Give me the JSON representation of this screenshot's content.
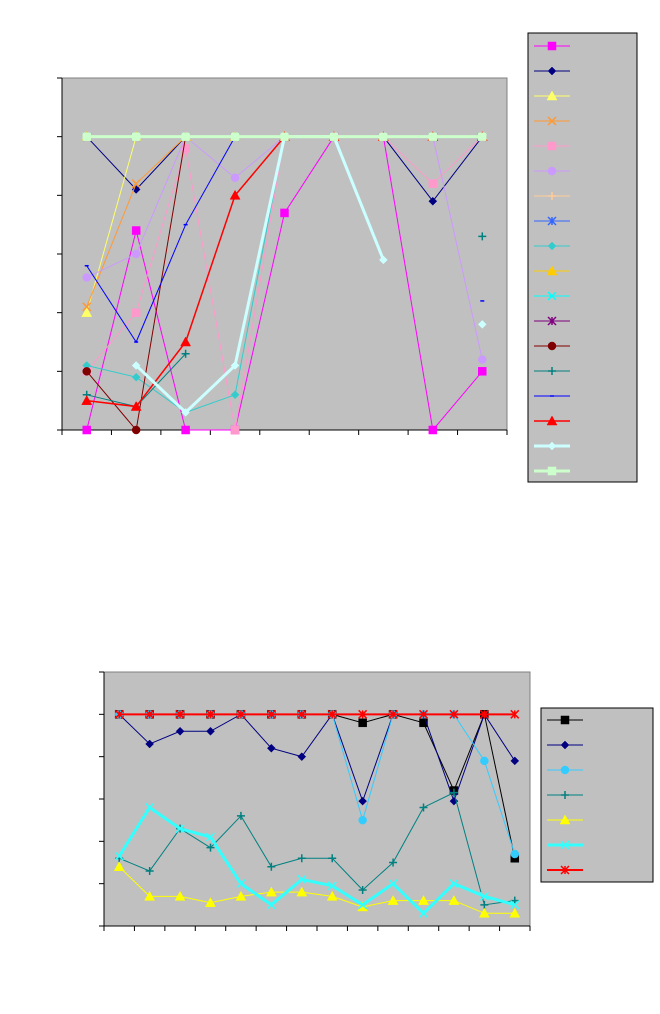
{
  "chart_data": [
    {
      "type": "line",
      "categories": [
        null,
        null,
        null,
        null,
        null,
        null,
        null,
        null,
        null
      ],
      "ylim": [
        0,
        6
      ],
      "yticks": [
        0,
        1,
        2,
        3,
        4,
        5,
        6
      ],
      "legend": "right",
      "series": [
        {
          "color": "#ff00ff",
          "marker": "square",
          "width": 1,
          "values": [
            0,
            3.4,
            0,
            0,
            3.7,
            5,
            5,
            0,
            1
          ]
        },
        {
          "color": "#000080",
          "marker": "diamond",
          "width": 1,
          "values": [
            5,
            4.1,
            5,
            5,
            5,
            5,
            5,
            3.9,
            5
          ]
        },
        {
          "color": "#ffff66",
          "marker": "triangle",
          "width": 1,
          "values": [
            2,
            5,
            5,
            5,
            5,
            5,
            5,
            5,
            5
          ]
        },
        {
          "color": "#ff9933",
          "marker": "x",
          "width": 1,
          "values": [
            2.1,
            4.2,
            5,
            5,
            5,
            5,
            5,
            5,
            5
          ]
        },
        {
          "color": "#ff99cc",
          "marker": "square",
          "width": 1,
          "values": [
            1,
            2,
            4.8,
            0,
            5,
            5,
            5,
            4.2,
            5
          ]
        },
        {
          "color": "#cc99ff",
          "marker": "circle",
          "width": 1,
          "values": [
            2.6,
            3,
            5,
            4.3,
            5,
            5,
            5,
            5,
            1.2
          ]
        },
        {
          "color": "#ffcc99",
          "marker": "plus",
          "width": 1,
          "values": [
            5,
            5,
            5,
            5,
            5,
            5,
            5,
            5,
            5
          ]
        },
        {
          "color": "#3366ff",
          "marker": "star",
          "width": 1,
          "values": [
            5,
            5,
            5,
            5,
            5,
            5,
            5,
            5,
            5
          ]
        },
        {
          "color": "#33cccc",
          "marker": "diamond",
          "width": 1,
          "values": [
            1.1,
            0.9,
            0.3,
            0.6,
            5,
            5,
            5,
            5,
            5
          ]
        },
        {
          "color": "#ffcc00",
          "marker": "triangle",
          "width": 1,
          "values": [
            5,
            5,
            5,
            5,
            5,
            5,
            5,
            5,
            5
          ]
        },
        {
          "color": "#00ffff",
          "marker": "x",
          "width": 1,
          "values": [
            5,
            5,
            5,
            5,
            5,
            5,
            5,
            5,
            5
          ]
        },
        {
          "color": "#800080",
          "marker": "star",
          "width": 1,
          "values": [
            5,
            5,
            5,
            5,
            5,
            5,
            5,
            5,
            5
          ]
        },
        {
          "color": "#800000",
          "marker": "circle",
          "width": 1,
          "values": [
            1,
            0,
            5,
            5,
            5,
            5,
            5,
            5,
            5
          ]
        },
        {
          "color": "#008080",
          "marker": "plus",
          "width": 1,
          "values": [
            0.6,
            0.4,
            1.3,
            null,
            null,
            null,
            null,
            null,
            3.3
          ]
        },
        {
          "color": "#0000ff",
          "marker": "dash",
          "width": 1,
          "values": [
            2.8,
            1.5,
            3.5,
            5,
            5,
            5,
            5,
            null,
            2.2
          ]
        },
        {
          "color": "#ff0000",
          "marker": "triangle",
          "width": 1.5,
          "values": [
            0.5,
            0.4,
            1.5,
            4,
            5,
            5,
            5,
            5,
            5
          ]
        },
        {
          "color": "#ccffff",
          "marker": "diamond",
          "width": 3,
          "values": [
            null,
            1.1,
            0.3,
            1.1,
            5,
            5,
            2.9,
            null,
            1.8
          ]
        },
        {
          "color": "#ccffcc",
          "marker": "square",
          "width": 3,
          "values": [
            5,
            5,
            5,
            5,
            5,
            5,
            5,
            5,
            5
          ]
        }
      ]
    },
    {
      "type": "line",
      "categories": [
        null,
        null,
        null,
        null,
        null,
        null,
        null,
        null,
        null,
        null,
        null,
        null,
        null,
        null
      ],
      "ylim": [
        0,
        6
      ],
      "yticks": [
        0,
        1,
        2,
        3,
        4,
        5,
        6
      ],
      "legend": "right",
      "series": [
        {
          "color": "#000000",
          "marker": "square",
          "width": 1,
          "values": [
            5,
            5,
            5,
            5,
            5,
            5,
            5,
            5,
            4.8,
            5,
            4.8,
            3.2,
            5,
            1.6
          ]
        },
        {
          "color": "#000080",
          "marker": "diamond",
          "width": 1,
          "values": [
            5,
            4.3,
            4.6,
            4.6,
            5,
            4.2,
            4,
            5,
            2.95,
            5,
            5,
            2.95,
            5,
            3.9
          ]
        },
        {
          "color": "#33ccff",
          "marker": "circle",
          "width": 1,
          "values": [
            5,
            5,
            5,
            5,
            5,
            5,
            5,
            5,
            2.5,
            5,
            5,
            5,
            3.9,
            1.7
          ]
        },
        {
          "color": "#008080",
          "marker": "plus",
          "width": 1,
          "values": [
            1.6,
            1.3,
            2.3,
            1.85,
            2.6,
            1.4,
            1.6,
            1.6,
            0.85,
            1.5,
            2.8,
            3.15,
            0.5,
            0.6
          ]
        },
        {
          "color": "#ffff00",
          "marker": "triangle",
          "width": 1,
          "values": [
            1.4,
            0.7,
            0.7,
            0.55,
            0.7,
            0.8,
            0.8,
            0.7,
            0.45,
            0.6,
            0.6,
            0.6,
            0.3,
            0.3
          ]
        },
        {
          "color": "#33ffff",
          "marker": "x",
          "width": 3,
          "values": [
            1.65,
            2.8,
            2.3,
            2.1,
            1,
            0.5,
            1.1,
            0.95,
            0.5,
            1,
            0.3,
            1,
            0.7,
            0.5
          ]
        },
        {
          "color": "#ff0000",
          "marker": "star",
          "width": 2,
          "values": [
            5,
            5,
            5,
            5,
            5,
            5,
            5,
            5,
            5,
            5,
            5,
            5,
            5,
            5
          ]
        }
      ]
    }
  ]
}
